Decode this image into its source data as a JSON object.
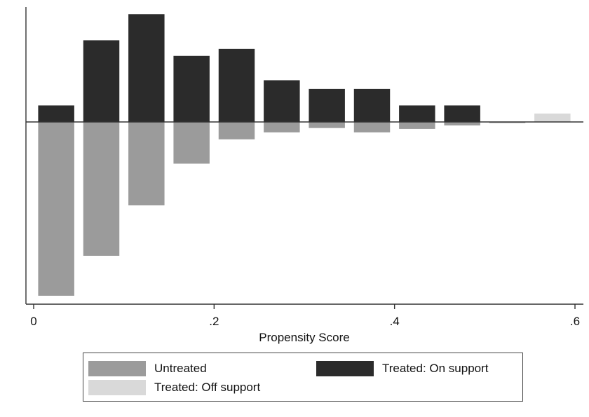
{
  "chart_data": {
    "type": "bar",
    "title": "",
    "xlabel": "Propensity Score",
    "ylabel": "",
    "xlim": [
      0,
      0.6
    ],
    "x_ticks": [
      {
        "value": 0,
        "label": "0"
      },
      {
        "value": 0.2,
        "label": ".2"
      },
      {
        "value": 0.4,
        "label": ".4"
      },
      {
        "value": 0.6,
        "label": ".6"
      }
    ],
    "mirrored": true,
    "bin_width": 0.05,
    "x": [
      0.025,
      0.075,
      0.125,
      0.175,
      0.225,
      0.275,
      0.325,
      0.375,
      0.425,
      0.475,
      0.525,
      0.575
    ],
    "series": [
      {
        "name": "Untreated",
        "side": "below",
        "color": "#9b9b9b",
        "values": [
          1.0,
          0.77,
          0.48,
          0.24,
          0.1,
          0.06,
          0.035,
          0.06,
          0.04,
          0.02,
          0.006,
          0
        ]
      },
      {
        "name": "Treated: On support",
        "side": "above",
        "color": "#2b2b2b",
        "values": [
          0.095,
          0.47,
          0.62,
          0.38,
          0.42,
          0.24,
          0.19,
          0.19,
          0.095,
          0.095,
          0,
          0
        ]
      },
      {
        "name": "Treated: Off support",
        "side": "above",
        "color": "#d9d9d9",
        "values": [
          0,
          0,
          0,
          0,
          0,
          0,
          0,
          0,
          0,
          0,
          0,
          0.048
        ]
      }
    ],
    "grid": false,
    "legend_position": "bottom"
  },
  "legend": {
    "items": [
      {
        "label": "Untreated",
        "color": "#9b9b9b"
      },
      {
        "label": "Treated: On support",
        "color": "#2b2b2b"
      },
      {
        "label": "Treated: Off support",
        "color": "#d9d9d9"
      }
    ]
  }
}
